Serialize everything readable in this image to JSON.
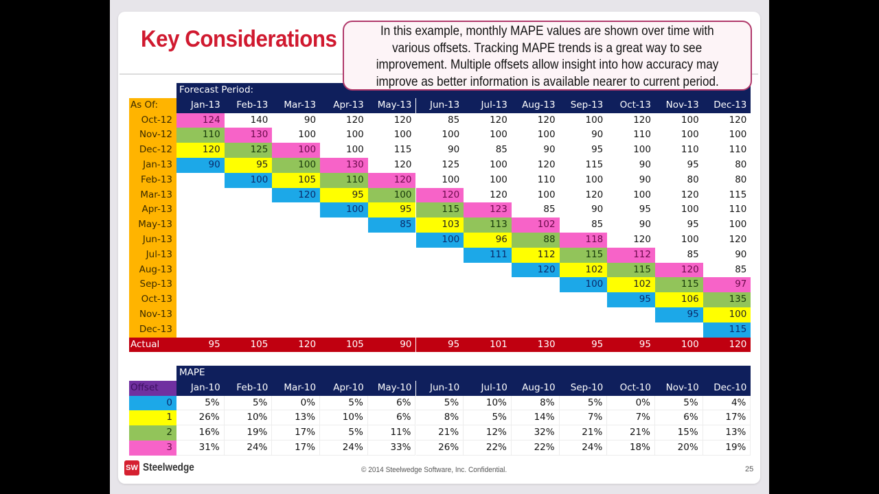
{
  "slide": {
    "title": "Key Considerations",
    "callout": [
      "In this example, monthly MAPE values are shown over time with",
      "various offsets. Tracking MAPE trends is a great way to see",
      "improvement.  Multiple offsets allow insight into how accuracy may",
      "improve as better information is available nearer to current period."
    ],
    "footer": {
      "logo_text": "SW",
      "brand": "Steelwedge",
      "copyright": "© 2014 Steelwedge Software, Inc. Confidential.",
      "page_number": "25"
    }
  },
  "colors": {
    "offset_0": "#1ca8e8",
    "offset_1": "#ffff00",
    "offset_2": "#92c45a",
    "offset_3": "#f763c8",
    "header": "#0f1f5c",
    "asof": "#ffb400",
    "actual": "#c00010",
    "title": "#d0192f"
  },
  "chart_data": [
    {
      "type": "table",
      "title": "Forecast Period:",
      "row_header_label": "As Of:",
      "columns": [
        "Jan-13",
        "Feb-13",
        "Mar-13",
        "Apr-13",
        "May-13",
        "Jun-13",
        "Jul-13",
        "Aug-13",
        "Sep-13",
        "Oct-13",
        "Nov-13",
        "Dec-13"
      ],
      "rows": [
        {
          "label": "Oct-12",
          "values": [
            124,
            140,
            90,
            120,
            120,
            85,
            120,
            120,
            100,
            120,
            100,
            120
          ]
        },
        {
          "label": "Nov-12",
          "values": [
            110,
            130,
            100,
            100,
            100,
            100,
            100,
            100,
            90,
            110,
            100,
            100
          ]
        },
        {
          "label": "Dec-12",
          "values": [
            120,
            125,
            100,
            100,
            115,
            90,
            85,
            90,
            95,
            100,
            110,
            110
          ]
        },
        {
          "label": "Jan-13",
          "values": [
            90,
            95,
            100,
            130,
            120,
            125,
            100,
            120,
            115,
            90,
            95,
            80
          ]
        },
        {
          "label": "Feb-13",
          "values": [
            null,
            100,
            105,
            110,
            120,
            100,
            100,
            110,
            100,
            90,
            80,
            80
          ]
        },
        {
          "label": "Mar-13",
          "values": [
            null,
            null,
            120,
            95,
            100,
            120,
            120,
            100,
            120,
            100,
            120,
            115
          ]
        },
        {
          "label": "Apr-13",
          "values": [
            null,
            null,
            null,
            100,
            95,
            115,
            123,
            85,
            90,
            95,
            100,
            110
          ]
        },
        {
          "label": "May-13",
          "values": [
            null,
            null,
            null,
            null,
            85,
            103,
            113,
            102,
            85,
            90,
            95,
            100
          ]
        },
        {
          "label": "Jun-13",
          "values": [
            null,
            null,
            null,
            null,
            null,
            100,
            96,
            88,
            118,
            120,
            100,
            120
          ]
        },
        {
          "label": "Jul-13",
          "values": [
            null,
            null,
            null,
            null,
            null,
            null,
            111,
            112,
            115,
            112,
            85,
            90
          ]
        },
        {
          "label": "Aug-13",
          "values": [
            null,
            null,
            null,
            null,
            null,
            null,
            null,
            120,
            102,
            115,
            120,
            85
          ]
        },
        {
          "label": "Sep-13",
          "values": [
            null,
            null,
            null,
            null,
            null,
            null,
            null,
            null,
            100,
            102,
            115,
            97
          ]
        },
        {
          "label": "Oct-13",
          "values": [
            null,
            null,
            null,
            null,
            null,
            null,
            null,
            null,
            null,
            95,
            106,
            135
          ]
        },
        {
          "label": "Nov-13",
          "values": [
            null,
            null,
            null,
            null,
            null,
            null,
            null,
            null,
            null,
            null,
            95,
            100
          ]
        },
        {
          "label": "Dec-13",
          "values": [
            null,
            null,
            null,
            null,
            null,
            null,
            null,
            null,
            null,
            null,
            null,
            115
          ]
        }
      ],
      "actual": {
        "label": "Actual",
        "values": [
          95,
          105,
          120,
          105,
          90,
          95,
          101,
          130,
          95,
          95,
          100,
          120
        ]
      },
      "highlight_note": "cells colored by offset: 0=blue, 1=yellow, 2=green, 3=pink"
    },
    {
      "type": "table",
      "title": "MAPE",
      "row_header_label": "Offset",
      "columns": [
        "Jan-10",
        "Feb-10",
        "Mar-10",
        "Apr-10",
        "May-10",
        "Jun-10",
        "Jul-10",
        "Aug-10",
        "Sep-10",
        "Oct-10",
        "Nov-10",
        "Dec-10"
      ],
      "rows": [
        {
          "label": "0",
          "values": [
            "5%",
            "5%",
            "0%",
            "5%",
            "6%",
            "5%",
            "10%",
            "8%",
            "5%",
            "0%",
            "5%",
            "4%"
          ]
        },
        {
          "label": "1",
          "values": [
            "26%",
            "10%",
            "13%",
            "10%",
            "6%",
            "8%",
            "5%",
            "14%",
            "7%",
            "7%",
            "6%",
            "17%"
          ]
        },
        {
          "label": "2",
          "values": [
            "16%",
            "19%",
            "17%",
            "5%",
            "11%",
            "21%",
            "12%",
            "32%",
            "21%",
            "21%",
            "15%",
            "13%"
          ]
        },
        {
          "label": "3",
          "values": [
            "31%",
            "24%",
            "17%",
            "24%",
            "33%",
            "26%",
            "22%",
            "22%",
            "24%",
            "18%",
            "20%",
            "19%"
          ]
        }
      ]
    }
  ]
}
